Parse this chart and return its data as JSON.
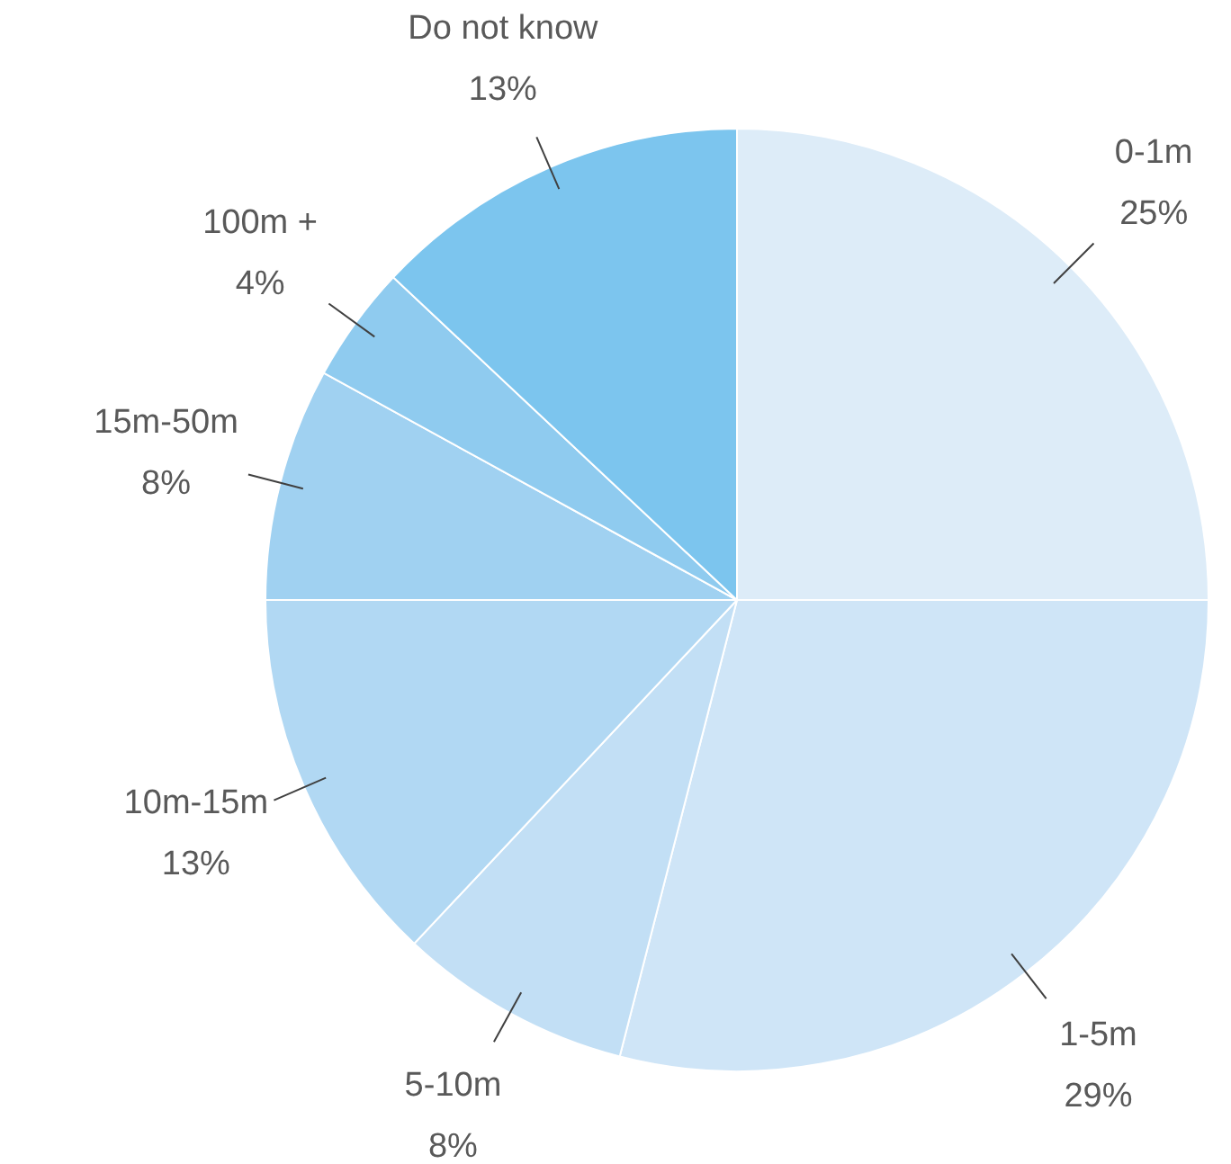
{
  "chart_data": {
    "type": "pie",
    "categories": [
      "0-1m",
      "1-5m",
      "5-10m",
      "10m-15m",
      "15m-50m",
      "100m +",
      "Do not know"
    ],
    "values": [
      25,
      29,
      8,
      13,
      8,
      4,
      13
    ],
    "value_labels": [
      "25%",
      "29%",
      "8%",
      "13%",
      "8%",
      "4%",
      "13%"
    ],
    "colors": [
      "#ddecf8",
      "#cfe5f7",
      "#c2dff5",
      "#b1d8f3",
      "#a0d1f1",
      "#8fcbef",
      "#7cc5ee"
    ]
  }
}
